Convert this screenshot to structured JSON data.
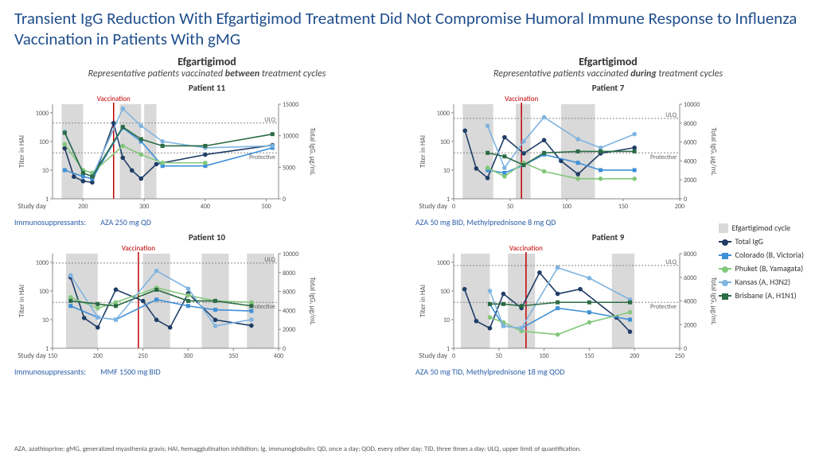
{
  "title": "Transient IgG Reduction With Efgartigimod Treatment Did Not Compromise Humoral Immune Response to Influenza Vaccination in Patients With gMG",
  "footnote": "AZA, azathioprine; gMG, generalized myasthenia gravis; HAI, hemagglutination inhibition; Ig, immunoglobulin; QD, once a day; QOD, every other day; TID, three times a day; ULQ, upper limit of quantification.",
  "colLeft": {
    "title": "Efgartigimod",
    "sub_pre": "Representative patients vaccinated ",
    "sub_em": "between",
    "sub_post": " treatment cycles"
  },
  "colRight": {
    "title": "Efgartigimod",
    "sub_pre": "Representative patients vaccinated ",
    "sub_em": "during",
    "sub_post": " treatment cycles"
  },
  "immuno_label": "Immunosuppressants:",
  "legend": {
    "cycle": "Efgartigimod cycle",
    "igg": "Total IgG",
    "colorado": "Colorado (B, Victoria)",
    "phuket": "Phuket (B, Yamagata)",
    "kansas": "Kansas (A, H3N2)",
    "brisbane": "Brisbane (A, H1N1)"
  },
  "colors": {
    "cycle": "#d9d9d9",
    "igg": "#1f3d66",
    "colorado": "#3f8fd6",
    "phuket": "#84c77b",
    "kansas": "#7fb4e0",
    "brisbane": "#2b6b45",
    "vacc": "#c00000"
  },
  "axis_labels": {
    "left": "Titer in HAI",
    "right": "Total IgG, µg/mL",
    "bottom": "Study day",
    "vacc": "Vaccination",
    "ulq": "ULQ",
    "prot": "Protective"
  },
  "charts": {
    "p11": {
      "title": "Patient 11",
      "immuno": "AZA 250 mg QD",
      "xlim": [
        150,
        520
      ],
      "xticks": [
        200,
        300,
        400,
        500
      ],
      "y_hai": [
        1,
        2000
      ],
      "y_igg": [
        0,
        15000
      ],
      "igg_ticks": [
        0,
        5000,
        10000,
        15000
      ],
      "cycles": [
        [
          165,
          200
        ],
        [
          260,
          295
        ],
        [
          300,
          320
        ]
      ],
      "vacc_day": 250,
      "ulq_igg": 12000,
      "protective_hai": 40,
      "series": {
        "igg": {
          "x": [
            170,
            185,
            200,
            215,
            250,
            265,
            280,
            295,
            320,
            400,
            510
          ],
          "y_igg": [
            8000,
            3500,
            2800,
            2600,
            12000,
            6500,
            4500,
            3200,
            5500,
            7000,
            8500
          ]
        },
        "colorado": {
          "x": [
            170,
            200,
            215,
            265,
            295,
            330,
            400,
            510
          ],
          "y_hai": [
            10,
            6,
            5,
            300,
            100,
            14,
            14,
            60
          ]
        },
        "phuket": {
          "x": [
            170,
            200,
            215,
            265,
            295,
            330,
            400
          ],
          "y_hai": [
            80,
            10,
            8,
            70,
            35,
            18,
            18
          ]
        },
        "kansas": {
          "x": [
            170,
            200,
            215,
            265,
            295,
            330,
            400,
            510
          ],
          "y_hai": [
            220,
            8,
            6,
            1400,
            350,
            100,
            60,
            70
          ]
        },
        "brisbane": {
          "x": [
            170,
            200,
            215,
            265,
            295,
            330,
            400,
            510
          ],
          "y_hai": [
            200,
            8,
            6,
            320,
            120,
            70,
            70,
            180
          ]
        }
      }
    },
    "p10": {
      "title": "Patient 10",
      "immuno": "MMF 1500 mg BID",
      "xlim": [
        150,
        400
      ],
      "xticks": [
        150,
        200,
        250,
        300,
        350,
        400
      ],
      "y_hai": [
        1,
        2000
      ],
      "y_igg": [
        0,
        10000
      ],
      "igg_ticks": [
        0,
        2000,
        4000,
        6000,
        8000,
        10000
      ],
      "cycles": [
        [
          165,
          200
        ],
        [
          250,
          280
        ],
        [
          315,
          345
        ],
        [
          365,
          395
        ]
      ],
      "vacc_day": 245,
      "ulq_igg": 9000,
      "protective_hai": 40,
      "series": {
        "igg": {
          "x": [
            170,
            185,
            200,
            220,
            250,
            265,
            280,
            300,
            330,
            370
          ],
          "y_igg": [
            7500,
            3200,
            2200,
            6200,
            5000,
            3000,
            2200,
            5800,
            3000,
            2400
          ]
        },
        "colorado": {
          "x": [
            170,
            200,
            220,
            265,
            300,
            330,
            370
          ],
          "y_hai": [
            30,
            12,
            10,
            50,
            30,
            22,
            20
          ]
        },
        "phuket": {
          "x": [
            170,
            200,
            220,
            265,
            300,
            330,
            370
          ],
          "y_hai": [
            60,
            25,
            40,
            130,
            70,
            45,
            40
          ]
        },
        "kansas": {
          "x": [
            170,
            200,
            220,
            265,
            300,
            330,
            370
          ],
          "y_hai": [
            350,
            12,
            10,
            500,
            120,
            6,
            10
          ]
        },
        "brisbane": {
          "x": [
            170,
            200,
            220,
            265,
            300,
            330,
            370
          ],
          "y_hai": [
            45,
            35,
            30,
            110,
            45,
            45,
            30
          ]
        }
      }
    },
    "p7": {
      "title": "Patient 7",
      "immuno": "AZA 50 mg BID, Methylprednisone 8 mg QD",
      "xlim": [
        0,
        200
      ],
      "xticks": [
        0,
        50,
        100,
        150,
        200
      ],
      "y_hai": [
        1,
        2000
      ],
      "y_igg": [
        0,
        10000
      ],
      "igg_ticks": [
        0,
        2000,
        4000,
        6000,
        8000,
        10000
      ],
      "cycles": [
        [
          8,
          35
        ],
        [
          55,
          68
        ],
        [
          95,
          125
        ]
      ],
      "vacc_day": 60,
      "ulq_igg": 8500,
      "protective_hai": 40,
      "series": {
        "igg": {
          "x": [
            10,
            20,
            30,
            45,
            62,
            80,
            95,
            110,
            130,
            160
          ],
          "y_igg": [
            7200,
            3200,
            2200,
            6500,
            4800,
            6200,
            4000,
            2600,
            4800,
            5400
          ]
        },
        "colorado": {
          "x": [
            30,
            45,
            62,
            80,
            110,
            130,
            160
          ],
          "y_hai": [
            10,
            8,
            15,
            35,
            18,
            10,
            10
          ]
        },
        "phuket": {
          "x": [
            30,
            45,
            62,
            80,
            110,
            130,
            160
          ],
          "y_hai": [
            12,
            6,
            18,
            9,
            5,
            5,
            5
          ]
        },
        "kansas": {
          "x": [
            30,
            45,
            62,
            80,
            110,
            130,
            160
          ],
          "y_hai": [
            350,
            12,
            100,
            700,
            120,
            60,
            180
          ]
        },
        "brisbane": {
          "x": [
            30,
            45,
            62,
            80,
            110,
            130,
            160
          ],
          "y_hai": [
            40,
            30,
            15,
            40,
            45,
            45,
            45
          ]
        }
      }
    },
    "p9": {
      "title": "Patient 9",
      "immuno": "AZA 50 mg TID, Methylprednisone 18 mg QOD",
      "xlim": [
        0,
        250
      ],
      "xticks": [
        0,
        50,
        100,
        150,
        200,
        250
      ],
      "y_hai": [
        1,
        2000
      ],
      "y_igg": [
        0,
        8000
      ],
      "igg_ticks": [
        0,
        2000,
        4000,
        6000,
        8000
      ],
      "cycles": [
        [
          8,
          40
        ],
        [
          60,
          90
        ],
        [
          175,
          200
        ]
      ],
      "vacc_day": 80,
      "ulq_igg": 7000,
      "protective_hai": 40,
      "series": {
        "igg": {
          "x": [
            12,
            25,
            40,
            55,
            75,
            95,
            115,
            140,
            180,
            195
          ],
          "y_igg": [
            5000,
            2300,
            1700,
            4600,
            3400,
            6400,
            4600,
            5000,
            2600,
            1400
          ]
        },
        "colorado": {
          "x": [
            40,
            55,
            75,
            115,
            150,
            195
          ],
          "y_hai": [
            35,
            6,
            5,
            25,
            18,
            10
          ]
        },
        "phuket": {
          "x": [
            40,
            55,
            75,
            115,
            150,
            195
          ],
          "y_hai": [
            12,
            8,
            4,
            3,
            8,
            18
          ]
        },
        "kansas": {
          "x": [
            40,
            55,
            75,
            115,
            150,
            195
          ],
          "y_hai": [
            100,
            6,
            5,
            650,
            280,
            50
          ]
        },
        "brisbane": {
          "x": [
            40,
            55,
            75,
            115,
            150,
            195
          ],
          "y_hai": [
            35,
            35,
            30,
            40,
            40,
            40
          ]
        }
      }
    }
  }
}
